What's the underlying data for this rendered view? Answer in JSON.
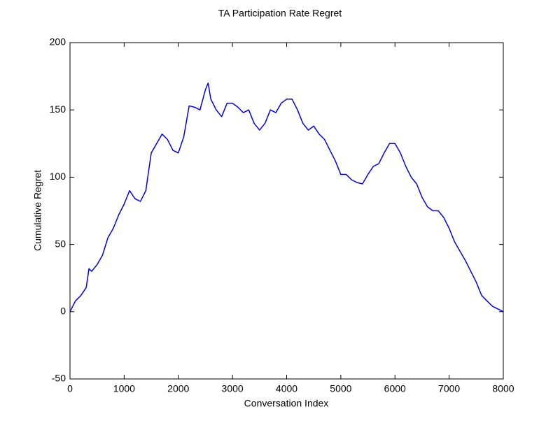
{
  "chart_data": {
    "type": "line",
    "title": "TA Participation Rate Regret",
    "xlabel": "Conversation Index",
    "ylabel": "Cumulative Regret",
    "x": [
      0,
      100,
      200,
      300,
      350,
      400,
      500,
      600,
      700,
      800,
      900,
      1000,
      1100,
      1200,
      1300,
      1400,
      1500,
      1600,
      1700,
      1800,
      1900,
      2000,
      2100,
      2200,
      2300,
      2400,
      2500,
      2550,
      2600,
      2700,
      2800,
      2900,
      3000,
      3100,
      3200,
      3300,
      3400,
      3500,
      3600,
      3700,
      3800,
      3900,
      4000,
      4100,
      4200,
      4300,
      4400,
      4500,
      4600,
      4700,
      4800,
      4900,
      5000,
      5100,
      5200,
      5300,
      5400,
      5500,
      5600,
      5700,
      5800,
      5900,
      6000,
      6100,
      6200,
      6300,
      6400,
      6500,
      6600,
      6700,
      6800,
      6900,
      7000,
      7100,
      7200,
      7300,
      7400,
      7500,
      7600,
      7700,
      7800,
      7900,
      8000
    ],
    "series": [
      {
        "name": "Cumulative Regret",
        "color": "#0000ee",
        "values": [
          0,
          8,
          12,
          18,
          32,
          30,
          35,
          42,
          55,
          62,
          72,
          80,
          90,
          84,
          82,
          90,
          118,
          125,
          132,
          128,
          120,
          118,
          130,
          153,
          152,
          150,
          165,
          170,
          158,
          150,
          145,
          155,
          155,
          152,
          148,
          150,
          140,
          135,
          140,
          150,
          148,
          155,
          158,
          158,
          150,
          140,
          135,
          138,
          132,
          128,
          120,
          112,
          102,
          102,
          98,
          96,
          95,
          102,
          108,
          110,
          118,
          125,
          125,
          118,
          108,
          100,
          95,
          85,
          78,
          75,
          75,
          70,
          62,
          52,
          45,
          38,
          30,
          22,
          12,
          8,
          4,
          2,
          0
        ]
      }
    ],
    "xlim": [
      0,
      8000
    ],
    "xticks": [
      0,
      1000,
      2000,
      3000,
      4000,
      5000,
      6000,
      7000,
      8000
    ],
    "ylim": [
      -50,
      200
    ],
    "yticks": [
      -50,
      0,
      50,
      100,
      150,
      200
    ]
  }
}
